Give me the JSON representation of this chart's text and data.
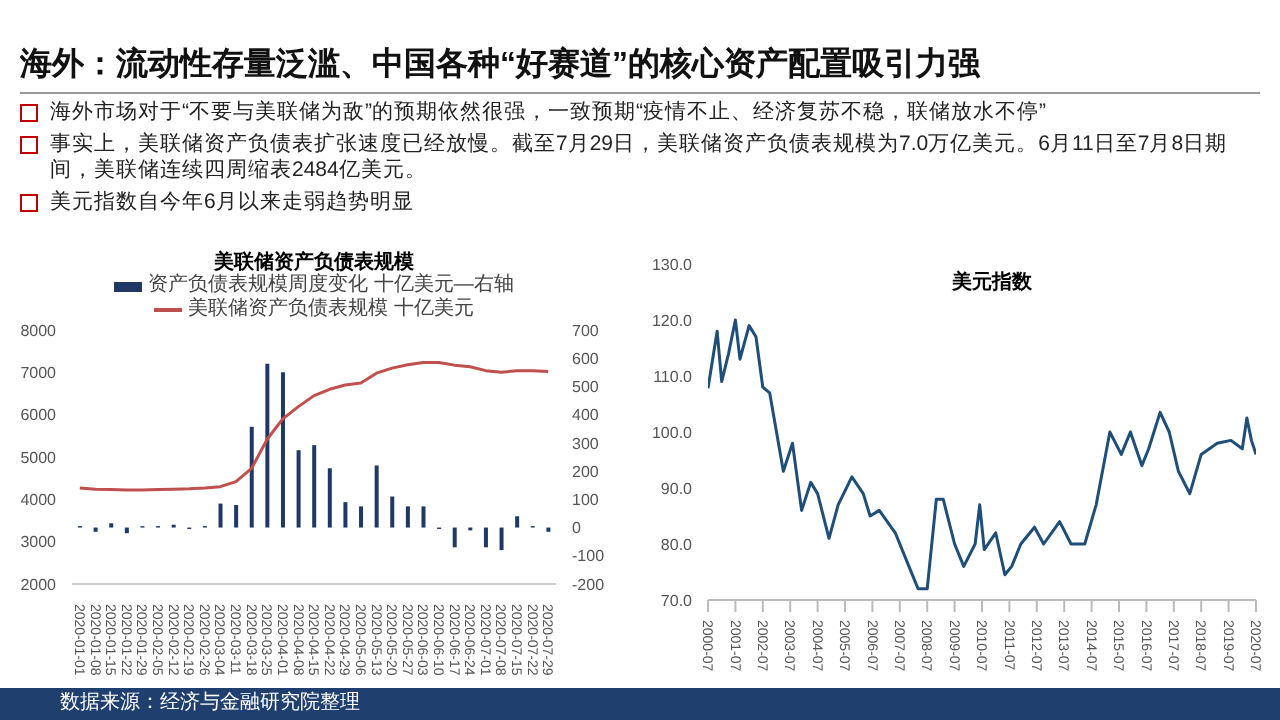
{
  "chart_data": [
    {
      "type": "other",
      "title": "海外：流动性存量泛滥、中国各种“好赛道”的核心资产配置吸引力强",
      "annotations": [
        "海外市场对于“不要与美联储为敌”的预期依然很强，一致预期“疫情不止、经济复苏不稳，联储放水不停”",
        "事实上，美联储资产负债表扩张速度已经放慢。截至7月29日，美联储资产负债表规模为7.0万亿美元。6月11日至7月8日期间，美联储连续四周缩表2484亿美元。",
        "美元指数自今年6月以来走弱趋势明显"
      ]
    },
    {
      "type": "bar",
      "title": "美联储资产负债表规模",
      "legend": "top",
      "annotations": [
        "数据来源：经济与金融研究院整理"
      ],
      "categories": [
        "2020-01-01",
        "2020-01-08",
        "2020-01-15",
        "2020-01-22",
        "2020-01-29",
        "2020-02-05",
        "2020-02-12",
        "2020-02-19",
        "2020-02-26",
        "2020-03-04",
        "2020-03-11",
        "2020-03-18",
        "2020-03-25",
        "2020-04-01",
        "2020-04-08",
        "2020-04-15",
        "2020-04-22",
        "2020-04-29",
        "2020-05-06",
        "2020-05-13",
        "2020-05-20",
        "2020-05-27",
        "2020-06-03",
        "2020-06-10",
        "2020-06-17",
        "2020-06-24",
        "2020-07-01",
        "2020-07-08",
        "2020-07-15",
        "2020-07-22",
        "2020-07-29"
      ],
      "series": [
        {
          "name": "资产负债表规模周度变化 十亿美元—右轴",
          "type": "bar",
          "axis": "y2",
          "color": "#1f3864",
          "values": [
            5,
            -15,
            15,
            -20,
            5,
            5,
            10,
            -5,
            5,
            85,
            80,
            357,
            580,
            550,
            274,
            292,
            210,
            90,
            75,
            220,
            110,
            75,
            75,
            -5,
            -70,
            -10,
            -70,
            -80,
            40,
            5,
            -15
          ]
        },
        {
          "name": "美联储资产负债表规模 十亿美元",
          "type": "line",
          "color": "#c0504d",
          "values": [
            4270,
            4240,
            4230,
            4220,
            4220,
            4230,
            4240,
            4250,
            4270,
            4300,
            4420,
            4730,
            5420,
            5900,
            6190,
            6450,
            6600,
            6700,
            6750,
            6980,
            7100,
            7180,
            7230,
            7230,
            7170,
            7130,
            7040,
            7000,
            7040,
            7040,
            7020
          ]
        }
      ],
      "ylim": [
        2000,
        8000
      ],
      "yticks": [
        2000,
        3000,
        4000,
        5000,
        6000,
        7000,
        8000
      ],
      "y2lim": [
        -200,
        700
      ],
      "y2ticks": [
        -200,
        -100,
        0,
        100,
        200,
        300,
        400,
        500,
        600,
        700
      ]
    },
    {
      "type": "line",
      "title": "美元指数",
      "color": "#1f4e79",
      "x": [
        "2000-07",
        "2000-11",
        "2001-01",
        "2001-04",
        "2001-07",
        "2001-09",
        "2002-01",
        "2002-04",
        "2002-07",
        "2002-10",
        "2003-01",
        "2003-04",
        "2003-08",
        "2003-12",
        "2004-04",
        "2004-07",
        "2004-12",
        "2005-04",
        "2005-10",
        "2006-03",
        "2006-06",
        "2006-10",
        "2007-05",
        "2007-11",
        "2008-03",
        "2008-07",
        "2008-11",
        "2009-02",
        "2009-07",
        "2009-11",
        "2010-04",
        "2010-06",
        "2010-08",
        "2011-01",
        "2011-05",
        "2011-08",
        "2011-12",
        "2012-06",
        "2012-10",
        "2013-05",
        "2013-10",
        "2014-04",
        "2014-09",
        "2015-03",
        "2015-08",
        "2015-12",
        "2016-05",
        "2016-08",
        "2017-01",
        "2017-05",
        "2017-09",
        "2018-02",
        "2018-07",
        "2019-02",
        "2019-08",
        "2020-01",
        "2020-03",
        "2020-05",
        "2020-07"
      ],
      "values": [
        107.8,
        118,
        109,
        114,
        120,
        113,
        119,
        117,
        108,
        107,
        100,
        93,
        98,
        86,
        91,
        89,
        81,
        87,
        92,
        89,
        85,
        86,
        82,
        76,
        72,
        72,
        88,
        88,
        80,
        76,
        80,
        87,
        79,
        82,
        74.5,
        76,
        80,
        83,
        80,
        84,
        80,
        80,
        87,
        100,
        96,
        100,
        94,
        97,
        103.5,
        100,
        93,
        89,
        96,
        98,
        98.5,
        97,
        102.5,
        98.5,
        96
      ],
      "xlim": [
        "2000-07",
        "2020-07"
      ],
      "xticks": [
        "2000-07",
        "2001-07",
        "2002-07",
        "2003-07",
        "2004-07",
        "2005-07",
        "2006-07",
        "2007-07",
        "2008-07",
        "2009-07",
        "2010-07",
        "2011-07",
        "2012-07",
        "2013-07",
        "2014-07",
        "2015-07",
        "2016-07",
        "2017-07",
        "2018-07",
        "2019-07",
        "2020-07"
      ],
      "ylim": [
        70,
        130
      ],
      "yticks": [
        {
          "value": 70,
          "label": "70.0"
        },
        {
          "value": 80,
          "label": "80.0"
        },
        {
          "value": 90,
          "label": "90.0"
        },
        {
          "value": 100,
          "label": "100.0"
        },
        {
          "value": 110,
          "label": "110.0"
        },
        {
          "value": 120,
          "label": "120.0"
        },
        {
          "value": 130,
          "label": "130.0"
        }
      ]
    }
  ]
}
